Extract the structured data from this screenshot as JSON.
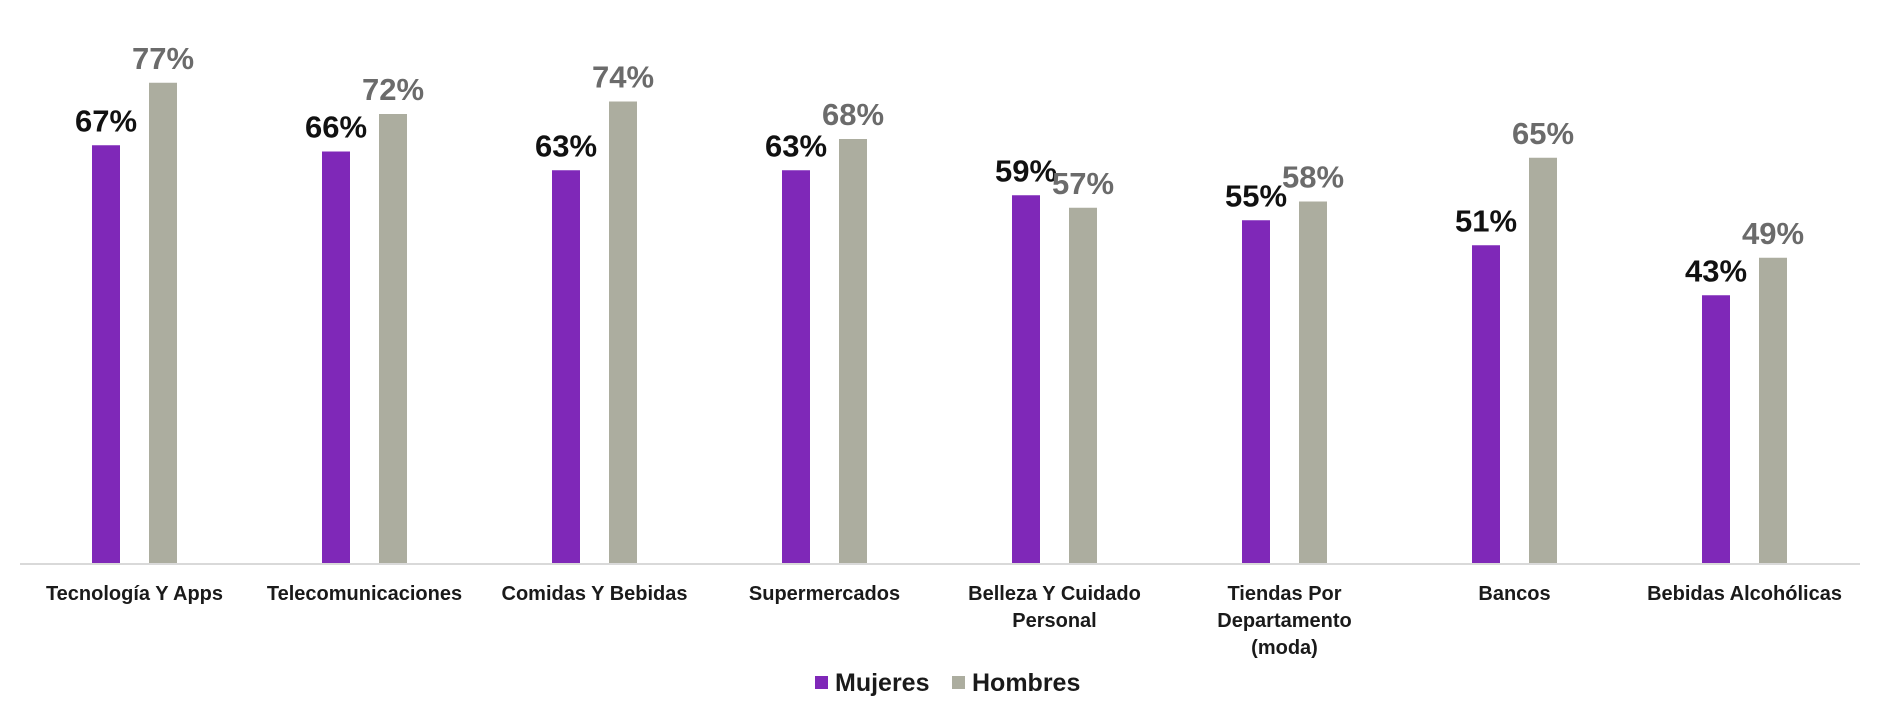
{
  "chart_data": {
    "type": "bar",
    "categories": [
      [
        "Tecnología Y Apps"
      ],
      [
        "Telecomunicaciones"
      ],
      [
        "Comidas Y Bebidas"
      ],
      [
        "Supermercados"
      ],
      [
        "Belleza Y Cuidado",
        "Personal"
      ],
      [
        "Tiendas Por",
        "Departamento",
        "(moda)"
      ],
      [
        "Bancos"
      ],
      [
        "Bebidas Alcohólicas"
      ]
    ],
    "series": [
      {
        "name": "Mujeres",
        "color": "#7f28b8",
        "label_color": "#111111",
        "values": [
          67,
          66,
          63,
          63,
          59,
          55,
          51,
          43
        ],
        "labels": [
          "67%",
          "66%",
          "63%",
          "63%",
          "59%",
          "55%",
          "51%",
          "43%"
        ]
      },
      {
        "name": "Hombres",
        "color": "#acad9f",
        "label_color": "#6b6b6b",
        "values": [
          77,
          72,
          74,
          68,
          57,
          58,
          65,
          49
        ],
        "labels": [
          "77%",
          "72%",
          "74%",
          "68%",
          "57%",
          "58%",
          "65%",
          "49%"
        ]
      }
    ],
    "ylim": [
      0,
      100
    ],
    "grid": false,
    "legend": "bottom-center",
    "axis_color": "#d9d9d9"
  }
}
